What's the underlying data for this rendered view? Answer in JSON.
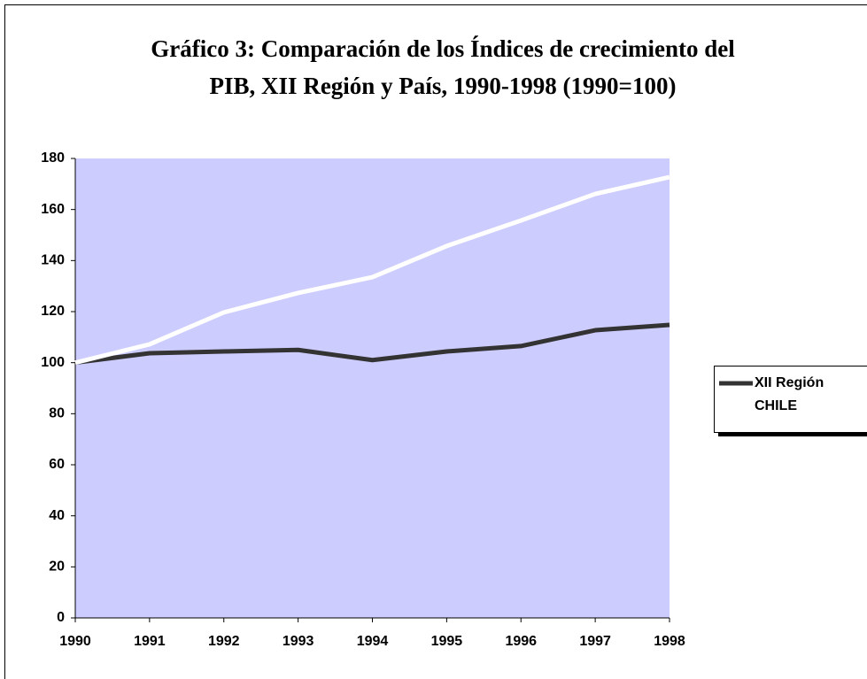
{
  "chart_data": {
    "type": "line",
    "title": "Gráfico 3: Comparación de los Índices de crecimiento del PIB, XII Región y País, 1990-1998 (1990=100)",
    "categories": [
      "1990",
      "1991",
      "1992",
      "1993",
      "1994",
      "1995",
      "1996",
      "1997",
      "1998"
    ],
    "series": [
      {
        "name": "XII Región",
        "color": "#333333",
        "values": [
          100,
          103.7,
          104.4,
          105,
          101,
          104.4,
          106.5,
          112.7,
          114.8
        ]
      },
      {
        "name": "CHILE",
        "color": "#ffffff",
        "values": [
          100,
          107.2,
          119.7,
          127.3,
          133.5,
          145.7,
          155.7,
          166.1,
          172.7
        ]
      }
    ],
    "ylim": [
      0,
      180
    ],
    "yticks": [
      0,
      20,
      40,
      60,
      80,
      100,
      120,
      140,
      160,
      180
    ],
    "plot_background": "#ccccff",
    "legend": "right"
  }
}
